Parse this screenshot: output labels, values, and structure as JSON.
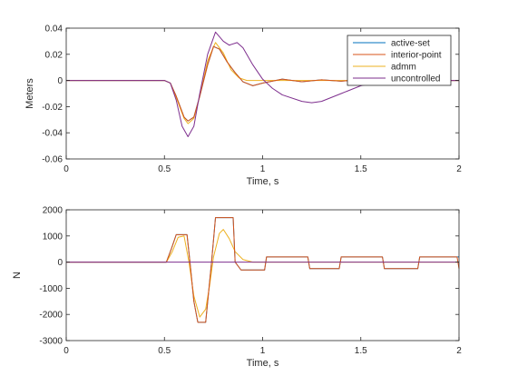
{
  "colors": {
    "active_set": "#0072BD",
    "interior_point": "#D95319",
    "admm": "#EDB120",
    "uncontrolled": "#7E2F8E"
  },
  "chart_data": [
    {
      "type": "line",
      "xlabel": "Time, s",
      "ylabel": "Meters",
      "xlim": [
        0,
        2
      ],
      "ylim": [
        -0.06,
        0.04
      ],
      "xticks": [
        "0",
        "0.5",
        "1",
        "1.5",
        "2"
      ],
      "yticks": [
        "0.04",
        "0.02",
        "0",
        "-0.02",
        "-0.04",
        "-0.06"
      ],
      "grid": false,
      "legend": "top-right",
      "series": [
        {
          "name": "active-set",
          "x": [
            0,
            0.5,
            0.53,
            0.56,
            0.6,
            0.62,
            0.65,
            0.68,
            0.72,
            0.75,
            0.78,
            0.82,
            0.86,
            0.9,
            0.95,
            1.0,
            1.1,
            1.2,
            1.3,
            1.4,
            1.5,
            1.6,
            1.7,
            1.8,
            1.9,
            2.0
          ],
          "y": [
            0,
            0,
            -0.002,
            -0.012,
            -0.028,
            -0.031,
            -0.028,
            -0.012,
            0.012,
            0.026,
            0.024,
            0.014,
            0.006,
            -0.001,
            -0.004,
            -0.002,
            0.001,
            -0.001,
            0.0005,
            -0.0005,
            0.0005,
            -0.0005,
            0.0005,
            -0.0005,
            0.0,
            0.0
          ]
        },
        {
          "name": "interior-point",
          "x": [
            0,
            0.5,
            0.53,
            0.56,
            0.6,
            0.62,
            0.65,
            0.68,
            0.72,
            0.75,
            0.78,
            0.82,
            0.86,
            0.9,
            0.95,
            1.0,
            1.1,
            1.2,
            1.3,
            1.4,
            1.5,
            1.6,
            1.7,
            1.8,
            1.9,
            2.0
          ],
          "y": [
            0,
            0,
            -0.002,
            -0.012,
            -0.028,
            -0.031,
            -0.028,
            -0.012,
            0.012,
            0.026,
            0.024,
            0.014,
            0.006,
            -0.001,
            -0.004,
            -0.002,
            0.001,
            -0.001,
            0.0005,
            -0.0005,
            0.0005,
            -0.0005,
            0.0005,
            -0.0005,
            0.0,
            0.0
          ]
        },
        {
          "name": "admm",
          "x": [
            0,
            0.5,
            0.53,
            0.56,
            0.6,
            0.62,
            0.65,
            0.68,
            0.72,
            0.76,
            0.8,
            0.84,
            0.88,
            0.92,
            1.0,
            1.2,
            1.4,
            1.6,
            1.8,
            2.0
          ],
          "y": [
            0,
            0,
            -0.002,
            -0.013,
            -0.029,
            -0.033,
            -0.029,
            -0.012,
            0.015,
            0.029,
            0.021,
            0.008,
            0.002,
            0.0,
            0.0,
            0.0,
            0.0,
            0.0,
            0.0,
            0.0
          ]
        },
        {
          "name": "uncontrolled",
          "x": [
            0,
            0.5,
            0.53,
            0.56,
            0.59,
            0.62,
            0.65,
            0.68,
            0.72,
            0.76,
            0.8,
            0.83,
            0.87,
            0.9,
            0.95,
            1.0,
            1.05,
            1.1,
            1.2,
            1.25,
            1.3,
            1.4,
            1.5,
            1.6,
            1.7,
            1.8,
            1.9,
            2.0
          ],
          "y": [
            0,
            0,
            -0.002,
            -0.015,
            -0.035,
            -0.043,
            -0.035,
            -0.01,
            0.02,
            0.037,
            0.03,
            0.027,
            0.029,
            0.025,
            0.012,
            0.001,
            -0.006,
            -0.011,
            -0.016,
            -0.017,
            -0.016,
            -0.01,
            -0.004,
            -0.001,
            0.0,
            0.0,
            0.0,
            0.0
          ]
        }
      ]
    },
    {
      "type": "line",
      "xlabel": "Time, s",
      "ylabel": "N",
      "xlim": [
        0,
        2
      ],
      "ylim": [
        -3000,
        2000
      ],
      "xticks": [
        "0",
        "0.5",
        "1",
        "1.5",
        "2"
      ],
      "yticks": [
        "2000",
        "1000",
        "0",
        "-1000",
        "-2000",
        "-3000"
      ],
      "grid": false,
      "series": [
        {
          "name": "active-set",
          "x": [
            0,
            0.51,
            0.535,
            0.56,
            0.615,
            0.63,
            0.65,
            0.67,
            0.71,
            0.74,
            0.76,
            0.78,
            0.85,
            0.86,
            0.89,
            0.9,
            1.01,
            1.02,
            1.23,
            1.24,
            1.39,
            1.4,
            1.61,
            1.62,
            1.79,
            1.8,
            2.0
          ],
          "y": [
            0,
            0,
            500,
            1050,
            1050,
            0,
            -1500,
            -2300,
            -2300,
            0,
            1700,
            1700,
            1700,
            0,
            -300,
            -300,
            -300,
            200,
            200,
            -250,
            -250,
            200,
            200,
            -250,
            -250,
            200,
            200
          ]
        },
        {
          "name": "interior-point",
          "x": [
            0,
            0.51,
            0.535,
            0.56,
            0.615,
            0.63,
            0.65,
            0.67,
            0.71,
            0.74,
            0.76,
            0.78,
            0.85,
            0.86,
            0.89,
            0.9,
            1.01,
            1.02,
            1.23,
            1.24,
            1.39,
            1.4,
            1.61,
            1.62,
            1.79,
            1.8,
            1.99,
            2.0
          ],
          "y": [
            0,
            0,
            500,
            1050,
            1050,
            0,
            -1500,
            -2300,
            -2300,
            0,
            1700,
            1700,
            1700,
            0,
            -300,
            -300,
            -300,
            200,
            200,
            -250,
            -250,
            200,
            200,
            -250,
            -250,
            200,
            200,
            -250
          ]
        },
        {
          "name": "admm",
          "x": [
            0,
            0.51,
            0.54,
            0.57,
            0.6,
            0.625,
            0.65,
            0.68,
            0.71,
            0.73,
            0.75,
            0.78,
            0.8,
            0.83,
            0.86,
            0.9,
            0.95,
            1.0,
            2.0
          ],
          "y": [
            0,
            0,
            400,
            950,
            1000,
            0,
            -1300,
            -2100,
            -1800,
            -900,
            200,
            1100,
            1250,
            900,
            400,
            100,
            0,
            0,
            0
          ]
        },
        {
          "name": "uncontrolled",
          "x": [
            0,
            2.0
          ],
          "y": [
            0,
            0
          ]
        }
      ]
    }
  ]
}
